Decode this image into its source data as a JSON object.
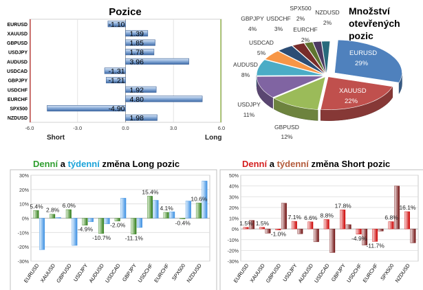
{
  "positions": {
    "title": "Pozice",
    "short_label": "Short",
    "long_label": "Long",
    "chart_data": {
      "type": "bar",
      "orientation": "horizontal",
      "categories": [
        "EURUSD",
        "XAUUSD",
        "GBPUSD",
        "USDJPY",
        "AUDUSD",
        "USDCAD",
        "GBPJPY",
        "USDCHF",
        "EURCHF",
        "SPX500",
        "NZDUSD"
      ],
      "values": [
        -1.1,
        1.39,
        1.85,
        1.78,
        3.96,
        -1.31,
        -1.21,
        1.92,
        4.8,
        -4.9,
        1.98
      ],
      "value_labels": [
        "-1.10",
        "1.39",
        "1.85",
        "1.78",
        "3.96",
        "-1.31",
        "-1.21",
        "1.92",
        "4.80",
        "-4.90",
        "1.98"
      ],
      "xlim": [
        -6.0,
        6.0
      ],
      "ticks": [
        "-6.0",
        "-3.0",
        "0.0",
        "3.0",
        "6.0"
      ],
      "colors": {
        "bar": "#4f7fbe",
        "bar_light": "#c9daf1",
        "short_line": "#c0504d",
        "long_line": "#9bbb59"
      }
    }
  },
  "open_positions": {
    "title_lines": [
      "Množství",
      "otevřených",
      "pozic"
    ],
    "chart_data": {
      "type": "pie",
      "slices": [
        {
          "label": "EURUSD",
          "value": 29,
          "text": "29%",
          "color": "#4f81bd"
        },
        {
          "label": "XAUUSD",
          "value": 22,
          "text": "22%",
          "color": "#c0504d"
        },
        {
          "label": "GBPUSD",
          "value": 12,
          "text": "12%",
          "color": "#9bbb59"
        },
        {
          "label": "USDJPY",
          "value": 11,
          "text": "11%",
          "color": "#8064a2"
        },
        {
          "label": "AUDUSD",
          "value": 8,
          "text": "8%",
          "color": "#4bacc6"
        },
        {
          "label": "USDCAD",
          "value": 5,
          "text": "5%",
          "color": "#f79646"
        },
        {
          "label": "GBPJPY",
          "value": 4,
          "text": "4%",
          "color": "#2c4d75"
        },
        {
          "label": "USDCHF",
          "value": 3,
          "text": "3%",
          "color": "#772c2a"
        },
        {
          "label": "EURCHF",
          "value": 2,
          "text": "2%",
          "color": "#5f7530"
        },
        {
          "label": "SPX500",
          "value": 2,
          "text": "2%",
          "color": "#4d3b62"
        },
        {
          "label": "NZDUSD",
          "value": 2,
          "text": "2%",
          "color": "#276a7c"
        }
      ]
    }
  },
  "long_changes": {
    "title": {
      "word1": "Denní",
      "sep": " a ",
      "word2": "týdenní",
      "rest": " změna Long pozic"
    },
    "title_colors": {
      "word1": "#2e9e2e",
      "word2": "#1aa3d9",
      "rest": "#000000"
    },
    "chart_data": {
      "type": "bar",
      "categories": [
        "EURUSD",
        "XAUUSD",
        "GBPUSD",
        "USDJPY",
        "AUDUSD",
        "USDCAD",
        "GBPJPY",
        "USDCHF",
        "EURCHF",
        "SPX500",
        "NZDUSD"
      ],
      "series": [
        {
          "name": "Denní",
          "color": "#3a8a1e",
          "values": [
            5.4,
            2.8,
            6.0,
            -4.9,
            -10.7,
            -2.0,
            -11.1,
            15.4,
            4.1,
            -0.4,
            10.6
          ]
        },
        {
          "name": "týdenní",
          "color": "#3d8fe0",
          "values": [
            -22.0,
            0.5,
            -19.0,
            -2.5,
            -4.0,
            14.0,
            -6.5,
            12.5,
            4.5,
            12.0,
            26.0
          ]
        }
      ],
      "data_labels": [
        "5.4%",
        "2.8%",
        "6.0%",
        "-4.9%",
        "-10.7%",
        "-2.0%",
        "-11.1%",
        "15.4%",
        "4.1%",
        "-0.4%",
        "10.6%"
      ],
      "ylim": [
        -30,
        30
      ],
      "ticks": [
        "30%",
        "20%",
        "10%",
        "0%",
        "-10%",
        "-20%",
        "-30%"
      ]
    }
  },
  "short_changes": {
    "title": {
      "word1": "Denní",
      "sep": " a ",
      "word2": "týdenní",
      "rest": " změna Short pozic"
    },
    "title_colors": {
      "word1": "#d42020",
      "word2": "#b35a3a",
      "rest": "#000000"
    },
    "chart_data": {
      "type": "bar",
      "categories": [
        "EURUSD",
        "XAUUSD",
        "GBPUSD",
        "USDJPY",
        "AUDUSD",
        "USDCAD",
        "GBPJPY",
        "USDCHF",
        "EURCHF",
        "SPX500",
        "NZDUSD"
      ],
      "series": [
        {
          "name": "Denní",
          "color": "#cc0000",
          "values": [
            1.5,
            1.5,
            -1.0,
            7.1,
            6.6,
            8.8,
            17.8,
            -4.9,
            -11.7,
            6.8,
            16.1
          ]
        },
        {
          "name": "týdenní",
          "color": "#7a1010",
          "values": [
            8.0,
            -4.0,
            24.0,
            -4.5,
            -12.0,
            -22.0,
            4.0,
            -15.0,
            -2.0,
            40.0,
            -13.0
          ]
        }
      ],
      "data_labels": [
        "1.5%",
        "1.5%",
        "-1.0%",
        "7.1%",
        "6.6%",
        "8.8%",
        "17.8%",
        "-4.9%",
        "-11.7%",
        "6.8%",
        "16.1%"
      ],
      "ylim": [
        -30,
        50
      ],
      "ticks": [
        "50%",
        "40%",
        "30%",
        "20%",
        "10%",
        "0%",
        "-10%",
        "-20%",
        "-30%"
      ]
    }
  }
}
